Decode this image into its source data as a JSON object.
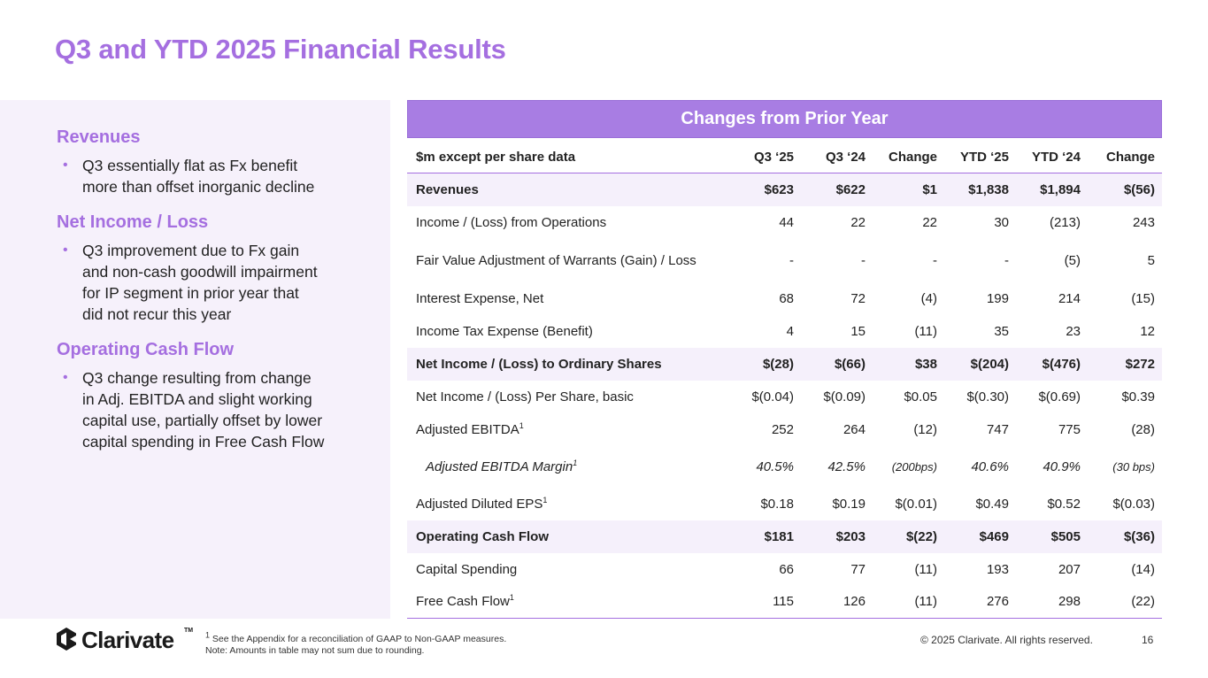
{
  "title": "Q3 and YTD 2025 Financial Results",
  "left_panel": {
    "sections": [
      {
        "heading": "Revenues",
        "bullet": [
          "Q3 essentially flat as Fx benefit",
          "more than offset inorganic decline"
        ]
      },
      {
        "heading": "Net Income / Loss",
        "bullet": [
          "Q3 improvement due to Fx gain",
          "and non-cash goodwill impairment",
          "for IP segment in prior year that",
          "did not recur this year"
        ]
      },
      {
        "heading": "Operating Cash Flow",
        "bullet": [
          "Q3 change resulting from change",
          "in Adj. EBITDA and slight working",
          "capital use, partially offset by lower",
          "capital spending in Free Cash Flow"
        ]
      }
    ]
  },
  "table": {
    "band_title": "Changes from Prior Year",
    "headers": [
      "$m except per share data",
      "Q3 ‘25",
      "Q3 ‘24",
      "Change",
      "YTD ‘25",
      "YTD ‘24",
      "Change"
    ],
    "rows": [
      {
        "label": "Revenues",
        "sup": "",
        "values": [
          "$623",
          "$622",
          "$1",
          "$1,838",
          "$1,894",
          "$(56)"
        ]
      },
      {
        "label": "Income / (Loss) from Operations",
        "sup": "",
        "values": [
          "44",
          "22",
          "22",
          "30",
          "(213)",
          "243"
        ]
      },
      {
        "label": "Fair Value Adjustment of Warrants (Gain) / Loss",
        "sup": "",
        "values": [
          "-",
          "-",
          "-",
          "-",
          "(5)",
          "5"
        ]
      },
      {
        "label": "Interest Expense, Net",
        "sup": "",
        "values": [
          "68",
          "72",
          "(4)",
          "199",
          "214",
          "(15)"
        ]
      },
      {
        "label": "Income Tax Expense (Benefit)",
        "sup": "",
        "values": [
          "4",
          "15",
          "(11)",
          "35",
          "23",
          "12"
        ]
      },
      {
        "label": "Net Income / (Loss) to Ordinary Shares",
        "sup": "",
        "values": [
          "$(28)",
          "$(66)",
          "$38",
          "$(204)",
          "$(476)",
          "$272"
        ]
      },
      {
        "label": "Net Income / (Loss) Per Share, basic",
        "sup": "",
        "values": [
          "$(0.04)",
          "$(0.09)",
          "$0.05",
          "$(0.30)",
          "$(0.69)",
          "$0.39"
        ]
      },
      {
        "label": "Adjusted EBITDA",
        "sup": "1",
        "values": [
          "252",
          "264",
          "(12)",
          "747",
          "775",
          "(28)"
        ]
      },
      {
        "label": "Adjusted EBITDA Margin",
        "sup": "1",
        "values": [
          "40.5%",
          "42.5%",
          "(200bps)",
          "40.6%",
          "40.9%",
          "(30 bps)"
        ]
      },
      {
        "label": "Adjusted Diluted EPS",
        "sup": "1",
        "values": [
          "$0.18",
          "$0.19",
          "$(0.01)",
          "$0.49",
          "$0.52",
          "$(0.03)"
        ]
      },
      {
        "label": "Operating Cash Flow",
        "sup": "",
        "values": [
          "$181",
          "$203",
          "$(22)",
          "$469",
          "$505",
          "$(36)"
        ]
      },
      {
        "label": "Capital Spending",
        "sup": "",
        "values": [
          "66",
          "77",
          "(11)",
          "193",
          "207",
          "(14)"
        ]
      },
      {
        "label": "Free Cash Flow",
        "sup": "1",
        "values": [
          "115",
          "126",
          "(11)",
          "276",
          "298",
          "(22)"
        ]
      }
    ]
  },
  "footer": {
    "logo_text": "Clarivate",
    "logo_tm": "TM",
    "footnote_line1_sup": "1",
    "footnote_line1": " See the Appendix for a reconciliation of GAAP to Non-GAAP measures.",
    "footnote_line2": "Note: Amounts in table may not sum due to rounding.",
    "copyright": "© 2025 Clarivate. All rights reserved.",
    "page_number": "16"
  },
  "colors": {
    "accent": "#a56fe0",
    "band": "#a87de3",
    "panel": "#f6f1fb",
    "row_highlight": "#f5f0fb"
  }
}
